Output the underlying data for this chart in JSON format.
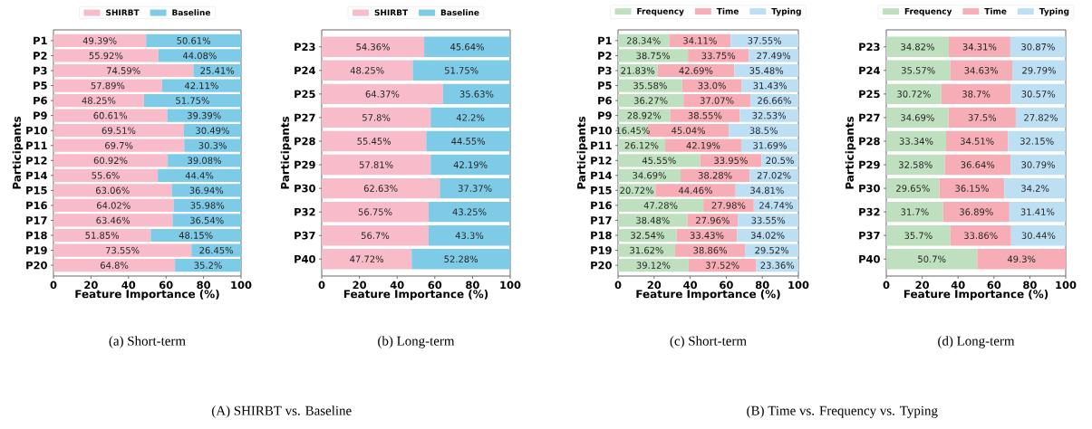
{
  "chart_data": [
    {
      "type": "bar",
      "orientation": "horizontal",
      "stacked": true,
      "title": "(a) Short-term",
      "xlabel": "Feature Importance (%)",
      "ylabel": "Participants",
      "legend": "top",
      "xlim": [
        0,
        100
      ],
      "xticks": [
        0,
        20,
        40,
        60,
        80,
        100
      ],
      "annotations": [
        "(A) SHIRBT vs. Baseline"
      ],
      "categories": [
        "P1",
        "P2",
        "P3",
        "P5",
        "P6",
        "P9",
        "P10",
        "P11",
        "P12",
        "P14",
        "P15",
        "P16",
        "P17",
        "P18",
        "P19",
        "P20"
      ],
      "series": [
        {
          "name": "SHIRBT",
          "color": "#f7bbc9",
          "values": [
            49.39,
            55.92,
            74.59,
            57.89,
            48.25,
            60.61,
            69.51,
            69.7,
            60.92,
            55.6,
            63.06,
            64.02,
            63.46,
            51.85,
            73.55,
            64.8
          ],
          "value_labels": [
            "49.39%",
            "55.92%",
            "74.59%",
            "57.89%",
            "48.25%",
            "60.61%",
            "69.51%",
            "69.7%",
            "60.92%",
            "55.6%",
            "63.06%",
            "64.02%",
            "63.46%",
            "51.85%",
            "73.55%",
            "64.8%"
          ]
        },
        {
          "name": "Baseline",
          "color": "#7ecbe8",
          "values": [
            50.61,
            44.08,
            25.41,
            42.11,
            51.75,
            39.39,
            30.49,
            30.3,
            39.08,
            44.4,
            36.94,
            35.98,
            36.54,
            48.15,
            26.45,
            35.2
          ],
          "value_labels": [
            "50.61%",
            "44.08%",
            "25.41%",
            "42.11%",
            "51.75%",
            "39.39%",
            "30.49%",
            "30.3%",
            "39.08%",
            "44.4%",
            "36.94%",
            "35.98%",
            "36.54%",
            "48.15%",
            "26.45%",
            "35.2%"
          ]
        }
      ]
    },
    {
      "type": "bar",
      "orientation": "horizontal",
      "stacked": true,
      "title": "(b) Long-term",
      "xlabel": "Feature Importance (%)",
      "ylabel": "Participants",
      "legend": "top",
      "xlim": [
        0,
        100
      ],
      "xticks": [
        0,
        20,
        40,
        60,
        80,
        100
      ],
      "categories": [
        "P23",
        "P24",
        "P25",
        "P27",
        "P28",
        "P29",
        "P30",
        "P32",
        "P37",
        "P40"
      ],
      "series": [
        {
          "name": "SHIRBT",
          "color": "#f7bbc9",
          "values": [
            54.36,
            48.25,
            64.37,
            57.8,
            55.45,
            57.81,
            62.63,
            56.75,
            56.7,
            47.72
          ],
          "value_labels": [
            "54.36%",
            "48.25%",
            "64.37%",
            "57.8%",
            "55.45%",
            "57.81%",
            "62.63%",
            "56.75%",
            "56.7%",
            "47.72%"
          ]
        },
        {
          "name": "Baseline",
          "color": "#7ecbe8",
          "values": [
            45.64,
            51.75,
            35.63,
            42.2,
            44.55,
            42.19,
            37.37,
            43.25,
            43.3,
            52.28
          ],
          "value_labels": [
            "45.64%",
            "51.75%",
            "35.63%",
            "42.2%",
            "44.55%",
            "42.19%",
            "37.37%",
            "43.25%",
            "43.3%",
            "52.28%"
          ]
        }
      ]
    },
    {
      "type": "bar",
      "orientation": "horizontal",
      "stacked": true,
      "title": "(c) Short-term",
      "xlabel": "Feature Importance (%)",
      "ylabel": "Participants",
      "legend": "top",
      "xlim": [
        0,
        100
      ],
      "xticks": [
        0,
        20,
        40,
        60,
        80,
        100
      ],
      "annotations": [
        "(B) Time vs. Frequency vs. Typing"
      ],
      "categories": [
        "P1",
        "P2",
        "P3",
        "P5",
        "P6",
        "P9",
        "P10",
        "P11",
        "P12",
        "P14",
        "P15",
        "P16",
        "P17",
        "P18",
        "P19",
        "P20"
      ],
      "series": [
        {
          "name": "Frequency",
          "color": "#bfe0be",
          "values": [
            28.34,
            38.75,
            21.83,
            35.58,
            36.27,
            28.92,
            16.45,
            26.12,
            45.55,
            34.69,
            20.72,
            47.28,
            38.48,
            32.54,
            31.62,
            39.12
          ],
          "value_labels": [
            "28.34%",
            "38.75%",
            "21.83%",
            "35.58%",
            "36.27%",
            "28.92%",
            "16.45%",
            "26.12%",
            "45.55%",
            "34.69%",
            "20.72%",
            "47.28%",
            "38.48%",
            "32.54%",
            "31.62%",
            "39.12%"
          ]
        },
        {
          "name": "Time",
          "color": "#f7adb5",
          "values": [
            34.11,
            33.75,
            42.69,
            33.0,
            37.07,
            38.55,
            45.04,
            42.19,
            33.95,
            38.28,
            44.46,
            27.98,
            27.96,
            33.43,
            38.86,
            37.52
          ],
          "value_labels": [
            "34.11%",
            "33.75%",
            "42.69%",
            "33.0%",
            "37.07%",
            "38.55%",
            "45.04%",
            "42.19%",
            "33.95%",
            "38.28%",
            "44.46%",
            "27.98%",
            "27.96%",
            "33.43%",
            "38.86%",
            "37.52%"
          ]
        },
        {
          "name": "Typing",
          "color": "#bcdff4",
          "values": [
            37.55,
            27.49,
            35.48,
            31.43,
            26.66,
            32.53,
            38.5,
            31.69,
            20.5,
            27.02,
            34.81,
            24.74,
            33.55,
            34.02,
            29.52,
            23.36
          ],
          "value_labels": [
            "37.55%",
            "27.49%",
            "35.48%",
            "31.43%",
            "26.66%",
            "32.53%",
            "38.5%",
            "31.69%",
            "20.5%",
            "27.02%",
            "34.81%",
            "24.74%",
            "33.55%",
            "34.02%",
            "29.52%",
            "23.36%"
          ]
        }
      ]
    },
    {
      "type": "bar",
      "orientation": "horizontal",
      "stacked": true,
      "title": "(d) Long-term",
      "xlabel": "Feature Importance (%)",
      "ylabel": "Participants",
      "legend": "top",
      "xlim": [
        0,
        100
      ],
      "xticks": [
        0,
        20,
        40,
        60,
        80,
        100
      ],
      "categories": [
        "P23",
        "P24",
        "P25",
        "P27",
        "P28",
        "P29",
        "P30",
        "P32",
        "P37",
        "P40"
      ],
      "series": [
        {
          "name": "Frequency",
          "color": "#bfe0be",
          "values": [
            34.82,
            35.57,
            30.72,
            34.69,
            33.34,
            32.58,
            29.65,
            31.7,
            35.7,
            50.7
          ],
          "value_labels": [
            "34.82%",
            "35.57%",
            "30.72%",
            "34.69%",
            "33.34%",
            "32.58%",
            "29.65%",
            "31.7%",
            "35.7%",
            "50.7%"
          ]
        },
        {
          "name": "Time",
          "color": "#f7adb5",
          "values": [
            34.31,
            34.63,
            38.7,
            37.5,
            34.51,
            36.64,
            36.15,
            36.89,
            33.86,
            49.3
          ],
          "value_labels": [
            "34.31%",
            "34.63%",
            "38.7%",
            "37.5%",
            "34.51%",
            "36.64%",
            "36.15%",
            "36.89%",
            "33.86%",
            "49.3%"
          ]
        },
        {
          "name": "Typing",
          "color": "#bcdff4",
          "values": [
            30.87,
            29.79,
            30.57,
            27.82,
            32.15,
            30.79,
            34.2,
            31.41,
            30.44,
            0
          ],
          "value_labels": [
            "30.87%",
            "29.79%",
            "30.57%",
            "27.82%",
            "32.15%",
            "30.79%",
            "34.2%",
            "31.41%",
            "30.44%",
            null
          ]
        }
      ]
    }
  ]
}
